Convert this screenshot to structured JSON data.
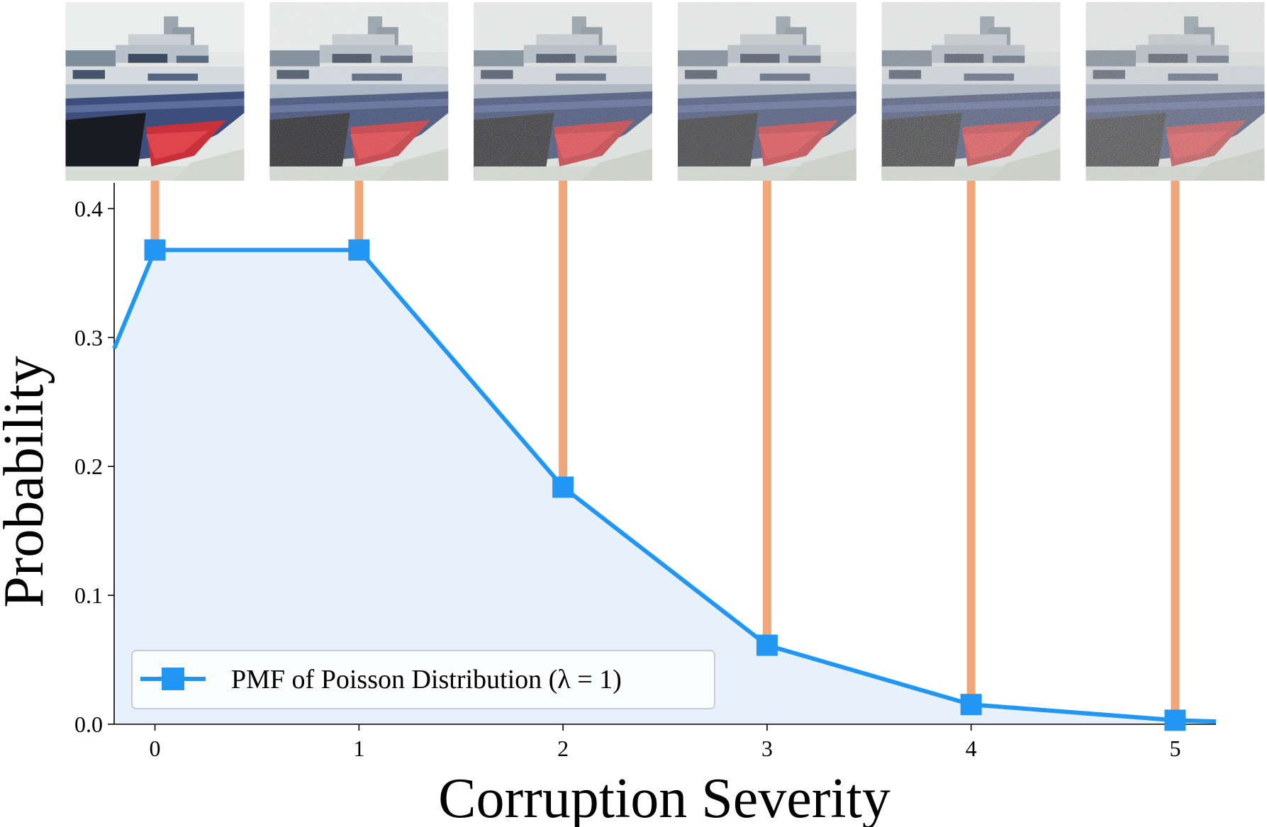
{
  "chart_data": {
    "type": "line",
    "title": "",
    "xlabel": "Corruption Severity",
    "ylabel": "Probability",
    "x": [
      0,
      1,
      2,
      3,
      4,
      5
    ],
    "series": [
      {
        "name": "PMF of Poisson Distribution",
        "legend_math": "(λ = 1)",
        "values": [
          0.3679,
          0.3679,
          0.1839,
          0.0613,
          0.0153,
          0.0031
        ],
        "extended_x": [
          -0.2,
          5.2
        ],
        "extended_values": [
          0.2915,
          0.0021
        ],
        "color": "#2196F3",
        "fill_color": "#E6F1FC"
      }
    ],
    "stem_color": "#F0A878",
    "xlim": [
      -0.2,
      5.2
    ],
    "ylim": [
      0,
      0.42
    ],
    "xticks": [
      "0",
      "1",
      "2",
      "3",
      "4",
      "5"
    ],
    "yticks": [
      "0.0",
      "0.1",
      "0.2",
      "0.3",
      "0.4"
    ],
    "ytick_values": [
      0.0,
      0.1,
      0.2,
      0.3,
      0.4
    ],
    "legend_position": "lower-left",
    "thumbnails": [
      {
        "severity": 0,
        "noise": "none"
      },
      {
        "severity": 1,
        "noise": "low"
      },
      {
        "severity": 2,
        "noise": "medium"
      },
      {
        "severity": 3,
        "noise": "medium-high"
      },
      {
        "severity": 4,
        "noise": "high"
      },
      {
        "severity": 5,
        "noise": "very-high"
      }
    ]
  }
}
